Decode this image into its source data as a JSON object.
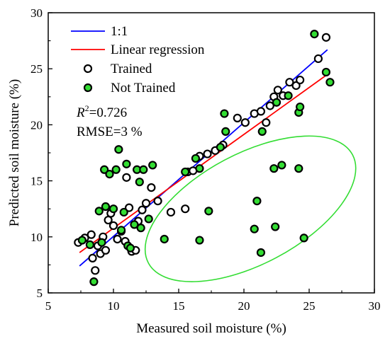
{
  "chart_data": {
    "type": "scatter",
    "xlabel": "Measured soil moisture (%)",
    "ylabel": "Predicted soil moisture (%)",
    "xlim": [
      5,
      30
    ],
    "ylim": [
      5,
      30
    ],
    "xticks": [
      "5",
      "10",
      "15",
      "20",
      "25",
      "30"
    ],
    "yticks": [
      "5",
      "10",
      "15",
      "20",
      "25",
      "30"
    ],
    "grid": false,
    "legend_position": "top-left",
    "lines": [
      {
        "name": "1:1",
        "color": "#0000ff",
        "points": [
          [
            7.4,
            7.4
          ],
          [
            26.4,
            26.7
          ]
        ]
      },
      {
        "name": "Linear regression",
        "color": "#ff0000",
        "points": [
          [
            7.4,
            8.6
          ],
          [
            26.4,
            24.5
          ]
        ]
      }
    ],
    "series": [
      {
        "name": "Trained",
        "marker": "open-circle",
        "edge_color": "#000000",
        "fill_color": "#ffffff",
        "points": [
          [
            7.3,
            9.5
          ],
          [
            7.8,
            9.9
          ],
          [
            8.3,
            10.2
          ],
          [
            8.4,
            8.1
          ],
          [
            8.6,
            7.0
          ],
          [
            8.8,
            9.2
          ],
          [
            9.0,
            8.5
          ],
          [
            9.2,
            10.0
          ],
          [
            9.4,
            8.8
          ],
          [
            9.6,
            11.5
          ],
          [
            9.8,
            12.1
          ],
          [
            10.0,
            11.0
          ],
          [
            10.3,
            9.8
          ],
          [
            10.6,
            10.5
          ],
          [
            10.9,
            9.6
          ],
          [
            11.0,
            15.3
          ],
          [
            11.2,
            12.6
          ],
          [
            11.4,
            8.7
          ],
          [
            11.7,
            8.8
          ],
          [
            11.9,
            11.4
          ],
          [
            12.2,
            12.4
          ],
          [
            12.5,
            13.0
          ],
          [
            12.9,
            14.4
          ],
          [
            13.4,
            13.2
          ],
          [
            14.4,
            12.2
          ],
          [
            15.5,
            12.5
          ],
          [
            15.7,
            15.8
          ],
          [
            16.1,
            15.9
          ],
          [
            16.6,
            17.2
          ],
          [
            17.2,
            17.4
          ],
          [
            17.8,
            17.7
          ],
          [
            18.4,
            18.2
          ],
          [
            19.5,
            20.6
          ],
          [
            20.1,
            20.2
          ],
          [
            20.8,
            21.0
          ],
          [
            21.3,
            21.2
          ],
          [
            21.7,
            20.2
          ],
          [
            22.0,
            21.7
          ],
          [
            22.3,
            22.5
          ],
          [
            22.6,
            23.1
          ],
          [
            23.0,
            22.6
          ],
          [
            23.5,
            23.8
          ],
          [
            24.0,
            23.5
          ],
          [
            24.3,
            24.0
          ],
          [
            25.7,
            25.9
          ],
          [
            26.3,
            27.8
          ]
        ]
      },
      {
        "name": "Not Trained",
        "marker": "filled-circle",
        "edge_color": "#000000",
        "fill_color": "#33dd33",
        "points": [
          [
            7.6,
            9.7
          ],
          [
            8.2,
            9.3
          ],
          [
            8.5,
            6.0
          ],
          [
            8.9,
            12.3
          ],
          [
            9.1,
            9.5
          ],
          [
            9.3,
            16.0
          ],
          [
            9.4,
            12.7
          ],
          [
            9.7,
            15.6
          ],
          [
            10.0,
            12.5
          ],
          [
            10.2,
            16.0
          ],
          [
            10.4,
            17.8
          ],
          [
            10.6,
            10.6
          ],
          [
            10.8,
            12.2
          ],
          [
            11.0,
            16.5
          ],
          [
            11.1,
            9.2
          ],
          [
            11.3,
            9.0
          ],
          [
            11.6,
            11.1
          ],
          [
            11.8,
            16.0
          ],
          [
            12.0,
            14.9
          ],
          [
            12.1,
            10.8
          ],
          [
            12.3,
            16.0
          ],
          [
            12.7,
            11.6
          ],
          [
            13.0,
            16.4
          ],
          [
            13.9,
            9.8
          ],
          [
            15.5,
            15.8
          ],
          [
            16.3,
            17.0
          ],
          [
            16.6,
            16.1
          ],
          [
            16.6,
            9.7
          ],
          [
            17.3,
            12.3
          ],
          [
            18.2,
            18.0
          ],
          [
            18.5,
            21.0
          ],
          [
            18.6,
            19.4
          ],
          [
            20.8,
            10.7
          ],
          [
            21.0,
            13.2
          ],
          [
            21.3,
            8.6
          ],
          [
            21.4,
            19.4
          ],
          [
            22.3,
            16.1
          ],
          [
            22.4,
            10.9
          ],
          [
            22.5,
            22.0
          ],
          [
            22.9,
            16.4
          ],
          [
            23.4,
            22.6
          ],
          [
            24.2,
            16.1
          ],
          [
            24.2,
            21.1
          ],
          [
            24.3,
            21.6
          ],
          [
            24.6,
            9.9
          ],
          [
            25.4,
            28.1
          ],
          [
            26.3,
            24.7
          ],
          [
            26.6,
            23.8
          ]
        ]
      }
    ],
    "annotations": {
      "r2_prefix": "R",
      "r2_superscript": "2",
      "r2_value": "=0.726",
      "rmse": "RMSE=3 %"
    },
    "ellipse": {
      "center": [
        20.5,
        12.5
      ],
      "color": "#33dd33"
    }
  }
}
